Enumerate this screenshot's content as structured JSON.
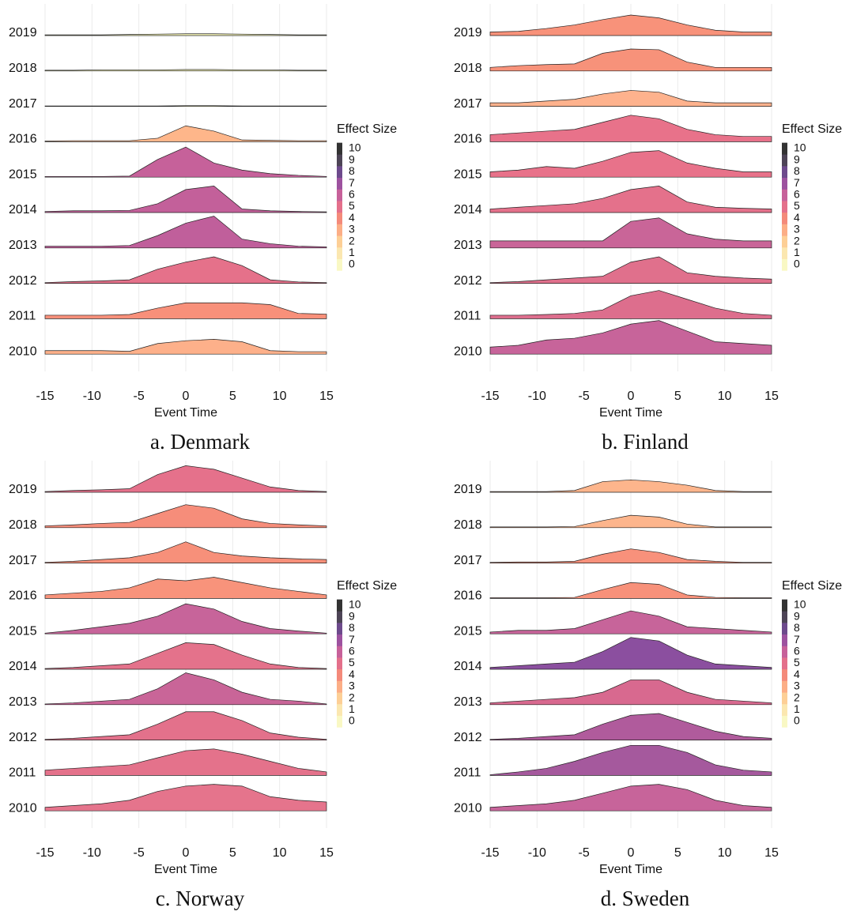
{
  "chart_data": [
    {
      "type": "ridgeline",
      "caption": "a. Denmark",
      "xlabel": "Event Time",
      "x": [
        -15,
        -12,
        -9,
        -6,
        -3,
        0,
        3,
        6,
        9,
        12,
        15
      ],
      "xlim": [
        -15,
        15
      ],
      "xticks": [
        -15,
        -10,
        -5,
        0,
        5,
        10,
        15
      ],
      "grid": true,
      "colorbar": {
        "title": "Effect Size",
        "ylim": [
          0,
          10
        ],
        "yticks": [
          0,
          1,
          2,
          3,
          4,
          5,
          6,
          7,
          8,
          9,
          10
        ],
        "colors": [
          "#f9f8c4",
          "#fbe7b0",
          "#fdcf96",
          "#fcae86",
          "#f48a7a",
          "#e4708b",
          "#c7619a",
          "#9d529f",
          "#6d4a8c",
          "#4d4456",
          "#333333"
        ]
      },
      "series": [
        {
          "name": "2019",
          "color": "#fcfbbd",
          "values": [
            0.02,
            0.02,
            0.02,
            0.03,
            0.04,
            0.05,
            0.05,
            0.04,
            0.03,
            0.02,
            0.02
          ]
        },
        {
          "name": "2018",
          "color": "#fcfbbd",
          "values": [
            0.02,
            0.02,
            0.03,
            0.03,
            0.03,
            0.04,
            0.04,
            0.03,
            0.03,
            0.02,
            0.02
          ]
        },
        {
          "name": "2017",
          "color": "#fdf6b6",
          "values": [
            0.01,
            0.01,
            0.01,
            0.01,
            0.01,
            0.02,
            0.02,
            0.01,
            0.01,
            0.01,
            0.01
          ]
        },
        {
          "name": "2016",
          "color": "#feb68a",
          "values": [
            0.02,
            0.03,
            0.03,
            0.03,
            0.1,
            0.45,
            0.3,
            0.05,
            0.04,
            0.03,
            0.03
          ]
        },
        {
          "name": "2015",
          "color": "#c6619a",
          "values": [
            0.02,
            0.02,
            0.02,
            0.03,
            0.5,
            0.85,
            0.4,
            0.2,
            0.1,
            0.05,
            0.02
          ]
        },
        {
          "name": "2014",
          "color": "#c3609a",
          "values": [
            0.03,
            0.05,
            0.05,
            0.06,
            0.25,
            0.65,
            0.75,
            0.1,
            0.05,
            0.03,
            0.02
          ]
        },
        {
          "name": "2013",
          "color": "#c05f9b",
          "values": [
            0.05,
            0.05,
            0.05,
            0.07,
            0.35,
            0.7,
            0.9,
            0.25,
            0.12,
            0.05,
            0.03
          ]
        },
        {
          "name": "2012",
          "color": "#e5718a",
          "values": [
            0.02,
            0.05,
            0.07,
            0.1,
            0.4,
            0.6,
            0.75,
            0.5,
            0.1,
            0.04,
            0.02
          ]
        },
        {
          "name": "2011",
          "color": "#f8907a",
          "values": [
            0.1,
            0.1,
            0.1,
            0.12,
            0.3,
            0.45,
            0.45,
            0.45,
            0.4,
            0.15,
            0.13
          ]
        },
        {
          "name": "2010",
          "color": "#fdb08a",
          "values": [
            0.1,
            0.1,
            0.1,
            0.08,
            0.3,
            0.38,
            0.42,
            0.35,
            0.1,
            0.07,
            0.07
          ]
        }
      ]
    },
    {
      "type": "ridgeline",
      "caption": "b. Finland",
      "xlabel": "Event Time",
      "x": [
        -15,
        -12,
        -9,
        -6,
        -3,
        0,
        3,
        6,
        9,
        12,
        15
      ],
      "xlim": [
        -15,
        15
      ],
      "xticks": [
        -15,
        -10,
        -5,
        0,
        5,
        10,
        15
      ],
      "grid": true,
      "colorbar": {
        "title": "Effect Size",
        "ylim": [
          0,
          10
        ],
        "yticks": [
          0,
          1,
          2,
          3,
          4,
          5,
          6,
          7,
          8,
          9,
          10
        ],
        "colors": [
          "#f9f8c4",
          "#fbe7b0",
          "#fdcf96",
          "#fcae86",
          "#f48a7a",
          "#e4708b",
          "#c7619a",
          "#9d529f",
          "#6d4a8c",
          "#4d4456",
          "#333333"
        ]
      },
      "series": [
        {
          "name": "2019",
          "color": "#f8927a",
          "values": [
            0.1,
            0.12,
            0.2,
            0.3,
            0.45,
            0.58,
            0.5,
            0.3,
            0.15,
            0.1,
            0.1
          ]
        },
        {
          "name": "2018",
          "color": "#f7927a",
          "values": [
            0.1,
            0.15,
            0.18,
            0.2,
            0.5,
            0.62,
            0.6,
            0.25,
            0.1,
            0.1,
            0.1
          ]
        },
        {
          "name": "2017",
          "color": "#feb28d",
          "values": [
            0.1,
            0.1,
            0.15,
            0.2,
            0.35,
            0.45,
            0.4,
            0.15,
            0.1,
            0.1,
            0.1
          ]
        },
        {
          "name": "2016",
          "color": "#e8728a",
          "values": [
            0.2,
            0.25,
            0.3,
            0.35,
            0.55,
            0.75,
            0.65,
            0.35,
            0.2,
            0.15,
            0.15
          ]
        },
        {
          "name": "2015",
          "color": "#e8728a",
          "values": [
            0.15,
            0.2,
            0.3,
            0.25,
            0.45,
            0.7,
            0.75,
            0.4,
            0.25,
            0.15,
            0.15
          ]
        },
        {
          "name": "2014",
          "color": "#e4718b",
          "values": [
            0.1,
            0.15,
            0.2,
            0.25,
            0.4,
            0.65,
            0.75,
            0.3,
            0.15,
            0.12,
            0.1
          ]
        },
        {
          "name": "2013",
          "color": "#c96598",
          "values": [
            0.2,
            0.2,
            0.2,
            0.2,
            0.2,
            0.75,
            0.85,
            0.4,
            0.25,
            0.2,
            0.2
          ]
        },
        {
          "name": "2012",
          "color": "#e0708c",
          "values": [
            0.02,
            0.05,
            0.1,
            0.15,
            0.2,
            0.6,
            0.75,
            0.3,
            0.2,
            0.15,
            0.12
          ]
        },
        {
          "name": "2011",
          "color": "#dd6e8d",
          "values": [
            0.1,
            0.1,
            0.12,
            0.15,
            0.25,
            0.65,
            0.8,
            0.55,
            0.3,
            0.15,
            0.1
          ]
        },
        {
          "name": "2010",
          "color": "#c7649a",
          "values": [
            0.2,
            0.25,
            0.4,
            0.45,
            0.6,
            0.85,
            0.95,
            0.65,
            0.35,
            0.3,
            0.25
          ]
        }
      ]
    },
    {
      "type": "ridgeline",
      "caption": "c. Norway",
      "xlabel": "Event Time",
      "x": [
        -15,
        -12,
        -9,
        -6,
        -3,
        0,
        3,
        6,
        9,
        12,
        15
      ],
      "xlim": [
        -15,
        15
      ],
      "xticks": [
        -15,
        -10,
        -5,
        0,
        5,
        10,
        15
      ],
      "grid": true,
      "colorbar": {
        "title": "Effect Size",
        "ylim": [
          0,
          10
        ],
        "yticks": [
          0,
          1,
          2,
          3,
          4,
          5,
          6,
          7,
          8,
          9,
          10
        ],
        "colors": [
          "#f9f8c4",
          "#fbe7b0",
          "#fdcf96",
          "#fcae86",
          "#f48a7a",
          "#e4708b",
          "#c7619a",
          "#9d529f",
          "#6d4a8c",
          "#4d4456",
          "#333333"
        ]
      },
      "series": [
        {
          "name": "2019",
          "color": "#e5718b",
          "values": [
            0.02,
            0.05,
            0.07,
            0.1,
            0.5,
            0.75,
            0.65,
            0.4,
            0.15,
            0.05,
            0.02
          ]
        },
        {
          "name": "2018",
          "color": "#f68d7a",
          "values": [
            0.05,
            0.08,
            0.12,
            0.15,
            0.4,
            0.65,
            0.55,
            0.25,
            0.12,
            0.08,
            0.05
          ]
        },
        {
          "name": "2017",
          "color": "#f7907a",
          "values": [
            0.02,
            0.05,
            0.1,
            0.15,
            0.3,
            0.6,
            0.3,
            0.2,
            0.15,
            0.12,
            0.1
          ]
        },
        {
          "name": "2016",
          "color": "#f8937b",
          "values": [
            0.1,
            0.15,
            0.2,
            0.3,
            0.55,
            0.5,
            0.6,
            0.45,
            0.3,
            0.2,
            0.1
          ]
        },
        {
          "name": "2015",
          "color": "#c7649a",
          "values": [
            0.02,
            0.1,
            0.2,
            0.3,
            0.5,
            0.85,
            0.7,
            0.35,
            0.15,
            0.08,
            0.02
          ]
        },
        {
          "name": "2014",
          "color": "#e4728b",
          "values": [
            0.02,
            0.05,
            0.1,
            0.15,
            0.45,
            0.75,
            0.7,
            0.4,
            0.15,
            0.05,
            0.02
          ]
        },
        {
          "name": "2013",
          "color": "#c96598",
          "values": [
            0.02,
            0.05,
            0.1,
            0.15,
            0.45,
            0.9,
            0.7,
            0.35,
            0.15,
            0.1,
            0.02
          ]
        },
        {
          "name": "2012",
          "color": "#e3718b",
          "values": [
            0.02,
            0.05,
            0.1,
            0.15,
            0.45,
            0.8,
            0.8,
            0.55,
            0.2,
            0.08,
            0.02
          ]
        },
        {
          "name": "2011",
          "color": "#e4728b",
          "values": [
            0.15,
            0.2,
            0.25,
            0.3,
            0.5,
            0.7,
            0.75,
            0.6,
            0.4,
            0.2,
            0.1
          ]
        },
        {
          "name": "2010",
          "color": "#e5748c",
          "values": [
            0.1,
            0.15,
            0.2,
            0.3,
            0.55,
            0.7,
            0.75,
            0.7,
            0.4,
            0.3,
            0.25
          ]
        }
      ]
    },
    {
      "type": "ridgeline",
      "caption": "d. Sweden",
      "xlabel": "Event Time",
      "x": [
        -15,
        -12,
        -9,
        -6,
        -3,
        0,
        3,
        6,
        9,
        12,
        15
      ],
      "xlim": [
        -15,
        15
      ],
      "xticks": [
        -15,
        -10,
        -5,
        0,
        5,
        10,
        15
      ],
      "grid": true,
      "colorbar": {
        "title": "Effect Size",
        "ylim": [
          0,
          10
        ],
        "yticks": [
          0,
          1,
          2,
          3,
          4,
          5,
          6,
          7,
          8,
          9,
          10
        ],
        "colors": [
          "#f9f8c4",
          "#fbe7b0",
          "#fdcf96",
          "#fcae86",
          "#f48a7a",
          "#e4708b",
          "#c7619a",
          "#9d529f",
          "#6d4a8c",
          "#4d4456",
          "#333333"
        ]
      },
      "series": [
        {
          "name": "2019",
          "color": "#fdb58c",
          "values": [
            0.02,
            0.02,
            0.02,
            0.05,
            0.3,
            0.35,
            0.3,
            0.2,
            0.05,
            0.02,
            0.02
          ]
        },
        {
          "name": "2018",
          "color": "#fdb58c",
          "values": [
            0.02,
            0.02,
            0.02,
            0.03,
            0.2,
            0.35,
            0.3,
            0.1,
            0.02,
            0.02,
            0.02
          ]
        },
        {
          "name": "2017",
          "color": "#f8917b",
          "values": [
            0.02,
            0.03,
            0.03,
            0.05,
            0.25,
            0.4,
            0.3,
            0.1,
            0.05,
            0.02,
            0.02
          ]
        },
        {
          "name": "2016",
          "color": "#f7917a",
          "values": [
            0.02,
            0.02,
            0.02,
            0.03,
            0.25,
            0.45,
            0.4,
            0.1,
            0.03,
            0.02,
            0.02
          ]
        },
        {
          "name": "2015",
          "color": "#c7649a",
          "values": [
            0.05,
            0.1,
            0.1,
            0.15,
            0.4,
            0.65,
            0.5,
            0.2,
            0.15,
            0.1,
            0.05
          ]
        },
        {
          "name": "2014",
          "color": "#8b4f9f",
          "values": [
            0.05,
            0.1,
            0.15,
            0.2,
            0.5,
            0.9,
            0.8,
            0.4,
            0.15,
            0.1,
            0.05
          ]
        },
        {
          "name": "2013",
          "color": "#d8698f",
          "values": [
            0.05,
            0.1,
            0.15,
            0.2,
            0.35,
            0.7,
            0.7,
            0.35,
            0.15,
            0.1,
            0.05
          ]
        },
        {
          "name": "2012",
          "color": "#b05b9c",
          "values": [
            0.02,
            0.05,
            0.1,
            0.15,
            0.45,
            0.7,
            0.75,
            0.5,
            0.25,
            0.1,
            0.05
          ]
        },
        {
          "name": "2011",
          "color": "#a5599d",
          "values": [
            0.02,
            0.1,
            0.2,
            0.4,
            0.65,
            0.85,
            0.85,
            0.65,
            0.3,
            0.15,
            0.1
          ]
        },
        {
          "name": "2010",
          "color": "#c7649a",
          "values": [
            0.1,
            0.15,
            0.2,
            0.3,
            0.5,
            0.7,
            0.75,
            0.6,
            0.3,
            0.15,
            0.1
          ]
        }
      ]
    }
  ]
}
